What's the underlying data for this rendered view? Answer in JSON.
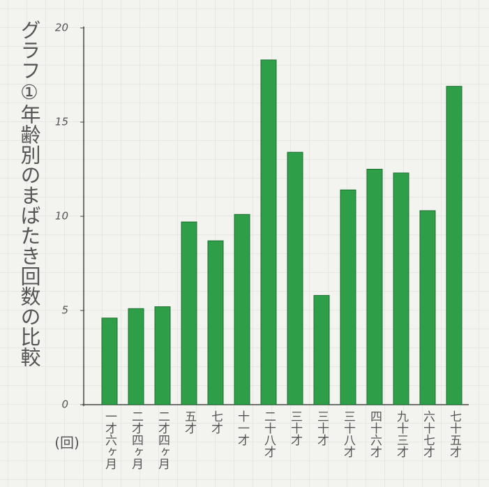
{
  "chart_data": {
    "type": "bar",
    "title": "グラフ①年齢別のまばたき回数の比較",
    "y_unit": "(回)",
    "categories": [
      "一才六ヶ月",
      "二才四ヶ月",
      "二才四ヶ月",
      "五才",
      "七才",
      "十一才",
      "二十八才",
      "三十才",
      "三十才",
      "三十八才",
      "四十六才",
      "九十三才",
      "六十七才",
      "七十五才"
    ],
    "values": [
      4.6,
      5.1,
      5.2,
      9.7,
      8.7,
      10.1,
      18.3,
      13.4,
      5.8,
      11.4,
      12.5,
      12.3,
      10.3,
      16.9
    ],
    "color": "#2f9e48",
    "ylim": [
      0,
      20
    ],
    "yticks": [
      0,
      5,
      10,
      15,
      20
    ]
  }
}
